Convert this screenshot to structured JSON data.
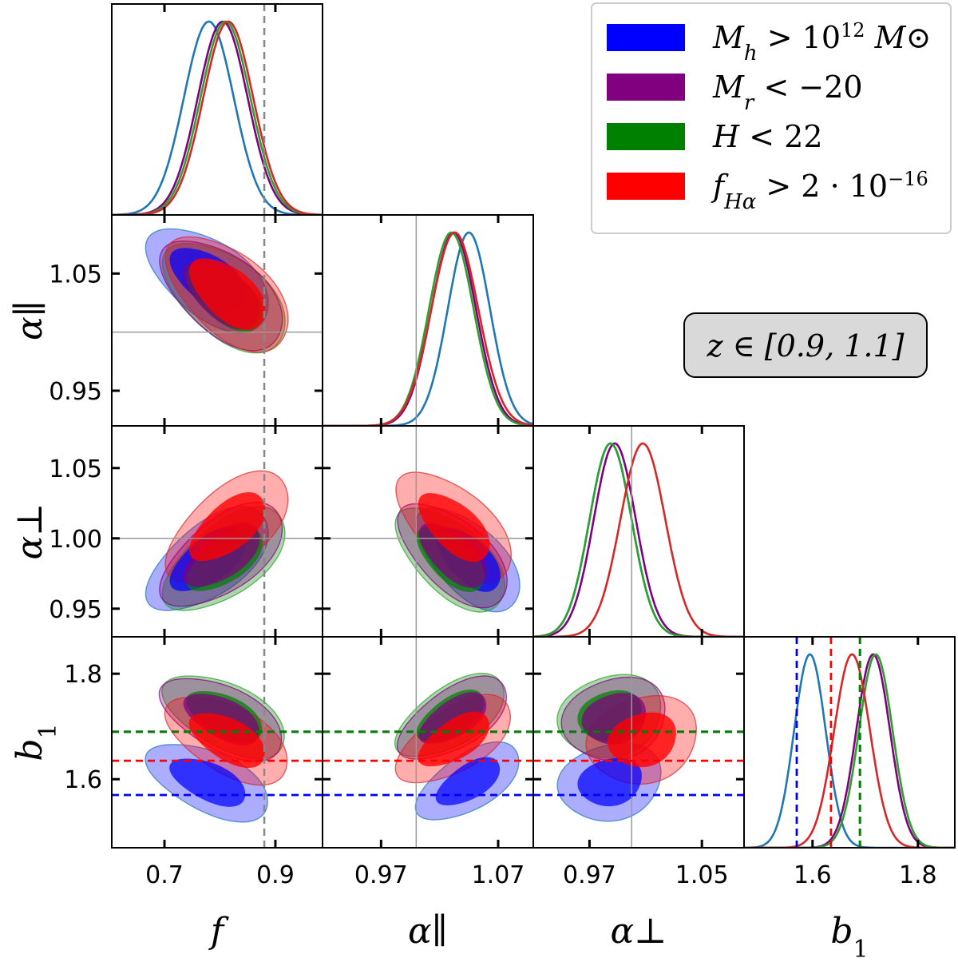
{
  "chart_data": {
    "type": "triangle-corner-plot",
    "parameters": [
      {
        "key": "f",
        "label": "f",
        "ticks": [
          0.7,
          0.9
        ],
        "tick_labels": [
          "0.7",
          "0.9"
        ],
        "range": [
          0.605,
          0.985
        ],
        "fiducial": 0.88
      },
      {
        "key": "alpha_par",
        "label": "α∥",
        "ticks": [
          0.97,
          1.07
        ],
        "tick_labels": [
          "0.97",
          "1.07"
        ],
        "y_ticks": [
          0.95,
          1.05
        ],
        "y_tick_labels": [
          "0.95",
          "1.05"
        ],
        "range": [
          0.92,
          1.1
        ],
        "fiducial": 1.0
      },
      {
        "key": "alpha_perp",
        "label": "α⊥",
        "ticks": [
          0.97,
          1.05
        ],
        "tick_labels": [
          "0.97",
          "1.05"
        ],
        "y_ticks": [
          0.95,
          1.0,
          1.05
        ],
        "y_tick_labels": [
          "0.95",
          "1.00",
          "1.05"
        ],
        "range": [
          0.93,
          1.08
        ],
        "fiducial": 1.0
      },
      {
        "key": "b1",
        "label": "b1",
        "label_sub": "1",
        "label_base": "b",
        "ticks": [
          1.6,
          1.8
        ],
        "tick_labels": [
          "1.6",
          "1.8"
        ],
        "range": [
          1.47,
          1.87
        ]
      }
    ],
    "series": [
      {
        "name": "M_h > 10^12 M_⊙",
        "legend_base": "M",
        "legend_sub": "h",
        "legend_rest": " > 10",
        "legend_sup": "12",
        "legend_tail": " M⊙",
        "color": "#0000ff",
        "line_color": "#1f77b4",
        "mean": {
          "f": 0.78,
          "alpha_par": 1.045,
          "alpha_perp": 0.985,
          "b1": 1.595
        },
        "sigma": {
          "f": 0.045,
          "alpha_par": 0.018,
          "alpha_perp": 0.015,
          "b1": 0.03
        },
        "fiducial_b1": 1.57
      },
      {
        "name": "M_r < −20",
        "legend_base": "M",
        "legend_sub": "r",
        "legend_rest": " < −20",
        "legend_sup": "",
        "legend_tail": "",
        "color": "#800080",
        "line_color": "#800080",
        "mean": {
          "f": 0.805,
          "alpha_par": 1.032,
          "alpha_perp": 0.988,
          "b1": 1.715
        },
        "sigma": {
          "f": 0.045,
          "alpha_par": 0.019,
          "alpha_perp": 0.015,
          "b1": 0.032
        },
        "fiducial_b1": 1.69
      },
      {
        "name": "H < 22",
        "legend_base": "H",
        "legend_sub": "",
        "legend_rest": " < 22",
        "legend_sup": "",
        "legend_tail": "",
        "color": "#008000",
        "line_color": "#2ca02c",
        "mean": {
          "f": 0.81,
          "alpha_par": 1.03,
          "alpha_perp": 0.985,
          "b1": 1.72
        },
        "sigma": {
          "f": 0.045,
          "alpha_par": 0.019,
          "alpha_perp": 0.015,
          "b1": 0.032
        },
        "fiducial_b1": 1.69
      },
      {
        "name": "f_Hα > 2·10^−16",
        "legend_base": "f",
        "legend_sub": "Hα",
        "legend_rest": " > 2 · 10",
        "legend_sup": "−16",
        "legend_tail": "",
        "color": "#ff0000",
        "line_color": "#d62728",
        "mean": {
          "f": 0.815,
          "alpha_par": 1.033,
          "alpha_perp": 1.008,
          "b1": 1.675
        },
        "sigma": {
          "f": 0.045,
          "alpha_par": 0.02,
          "alpha_perp": 0.016,
          "b1": 0.034
        },
        "fiducial_b1": 1.635
      }
    ],
    "correlations": {
      "f|alpha_par": -0.55,
      "f|alpha_perp": 0.6,
      "alpha_par|alpha_perp": -0.6,
      "f|b1": -0.55,
      "alpha_par|b1": 0.6,
      "alpha_perp|b1": 0.15
    },
    "annotation": "z ∈ [0.9, 1.1]",
    "legend_position": "top-right"
  }
}
